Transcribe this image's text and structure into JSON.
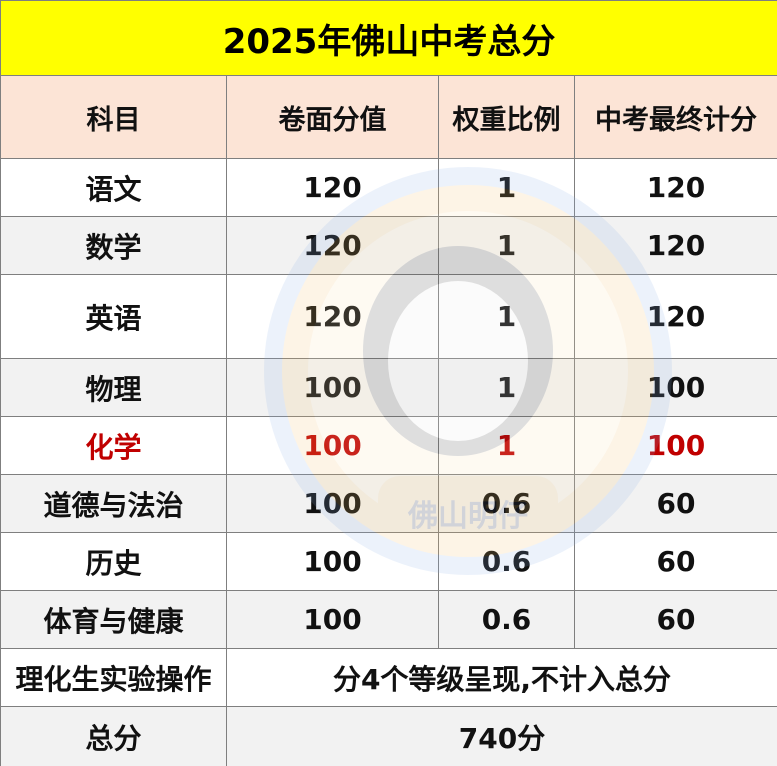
{
  "title": "2025年佛山中考总分",
  "headers": [
    "科目",
    "卷面分值",
    "权重比例",
    "中考最终计分"
  ],
  "rows": [
    {
      "subject": "语文",
      "score": "120",
      "weight": "1",
      "final": "120"
    },
    {
      "subject": "数学",
      "score": "120",
      "weight": "1",
      "final": "120"
    },
    {
      "subject": "英语",
      "score": "120",
      "weight": "1",
      "final": "120"
    },
    {
      "subject": "物理",
      "score": "100",
      "weight": "1",
      "final": "100"
    },
    {
      "subject": "化学",
      "score": "100",
      "weight": "1",
      "final": "100"
    },
    {
      "subject": "道德与法治",
      "score": "100",
      "weight": "0.6",
      "final": "60"
    },
    {
      "subject": "历史",
      "score": "100",
      "weight": "0.6",
      "final": "60"
    },
    {
      "subject": "体育与健康",
      "score": "100",
      "weight": "0.6",
      "final": "60"
    }
  ],
  "lab_row": {
    "label": "理化生实验操作",
    "value": "分4个等级呈现,不计入总分"
  },
  "total_row": {
    "label": "总分",
    "value": "740分"
  },
  "watermark": {
    "text": "佛山明仔"
  },
  "colors": {
    "title_bg": "#ffff00",
    "header_bg": "#fce4d6",
    "shade_bg": "#f2f2f2",
    "highlight_text": "#c00000"
  }
}
